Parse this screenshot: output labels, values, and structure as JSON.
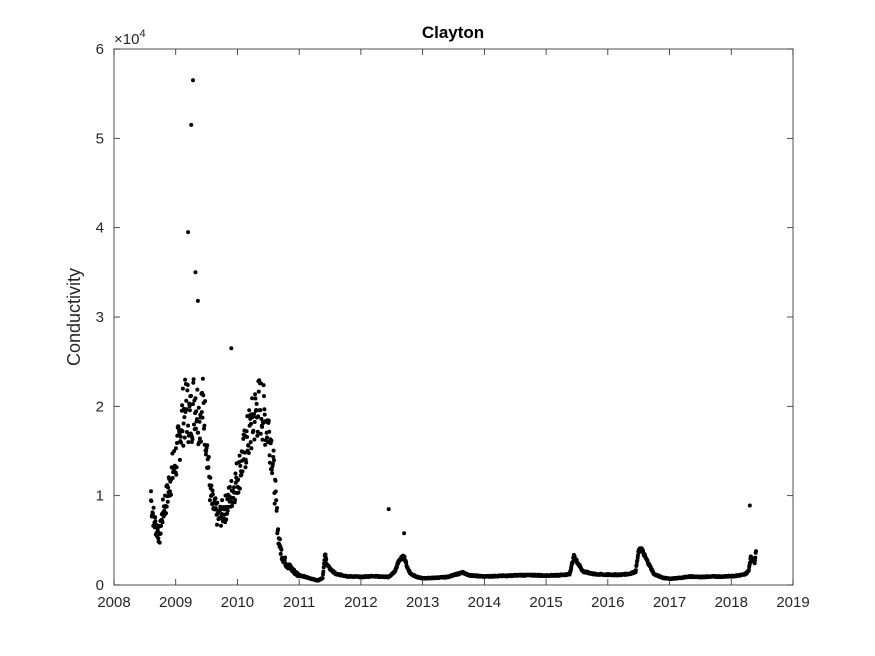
{
  "chart_data": {
    "type": "scatter",
    "title": "Clayton",
    "xlabel": "",
    "ylabel": "Conductivity",
    "xlim": [
      2008,
      2019
    ],
    "ylim": [
      0,
      60000
    ],
    "y_exponent_label": {
      "base": "×10",
      "power": "4"
    },
    "xticks": [
      "2008",
      "2009",
      "2010",
      "2011",
      "2012",
      "2013",
      "2014",
      "2015",
      "2016",
      "2017",
      "2018",
      "2019"
    ],
    "yticks": [
      "0",
      "1",
      "2",
      "3",
      "4",
      "5",
      "6"
    ],
    "marker_color": "#000000",
    "grid": false,
    "box": true,
    "notable_points": [
      {
        "x": 2008.6,
        "y": 10500
      },
      {
        "x": 2009.2,
        "y": 39500
      },
      {
        "x": 2009.25,
        "y": 51500
      },
      {
        "x": 2009.28,
        "y": 56500
      },
      {
        "x": 2009.32,
        "y": 35000
      },
      {
        "x": 2009.36,
        "y": 31800
      },
      {
        "x": 2009.9,
        "y": 26500
      },
      {
        "x": 2012.45,
        "y": 8500
      },
      {
        "x": 2012.7,
        "y": 5800
      },
      {
        "x": 2018.3,
        "y": 8900
      }
    ],
    "series": [
      {
        "x": [
          2008.6,
          2008.63,
          2008.66,
          2008.7,
          2008.74,
          2008.78,
          2008.82,
          2008.86,
          2008.9,
          2008.94,
          2008.98,
          2009.02,
          2009.05,
          2009.08,
          2009.11,
          2009.14,
          2009.17,
          2009.2,
          2009.23,
          2009.26,
          2009.29,
          2009.32,
          2009.35,
          2009.38,
          2009.41,
          2009.44,
          2009.47,
          2009.5,
          2009.53,
          2009.56,
          2009.59,
          2009.62,
          2009.65,
          2009.68,
          2009.71,
          2009.74,
          2009.77,
          2009.8,
          2009.83,
          2009.86,
          2009.89,
          2009.92,
          2009.95,
          2009.98,
          2010.01,
          2010.04,
          2010.07,
          2010.1,
          2010.13,
          2010.16,
          2010.19,
          2010.22,
          2010.25,
          2010.28,
          2010.31,
          2010.34,
          2010.37,
          2010.4,
          2010.43,
          2010.46,
          2010.49,
          2010.52,
          2010.55,
          2010.58,
          2010.61,
          2010.64,
          2010.67,
          2010.7,
          2010.73,
          2010.76,
          2010.8,
          2010.85,
          2010.9,
          2010.95,
          2011.0,
          2011.1,
          2011.2,
          2011.3,
          2011.38,
          2011.42,
          2011.45,
          2011.5,
          2011.6,
          2011.7,
          2011.8,
          2011.9,
          2012.0,
          2012.1,
          2012.2,
          2012.3,
          2012.45,
          2012.55,
          2012.62,
          2012.7,
          2012.75,
          2012.8,
          2012.9,
          2013.0,
          2013.2,
          2013.4,
          2013.55,
          2013.65,
          2013.75,
          2013.9,
          2014.0,
          2014.2,
          2014.4,
          2014.6,
          2014.8,
          2015.0,
          2015.2,
          2015.38,
          2015.45,
          2015.6,
          2015.8,
          2016.0,
          2016.2,
          2016.35,
          2016.45,
          2016.5,
          2016.55,
          2016.6,
          2016.75,
          2016.9,
          2017.0,
          2017.2,
          2017.3,
          2017.5,
          2017.7,
          2017.9,
          2018.0,
          2018.1,
          2018.2,
          2018.25,
          2018.28,
          2018.3,
          2018.32,
          2018.35,
          2018.38,
          2018.4
        ],
        "y": [
          9500,
          8000,
          7000,
          6200,
          5500,
          7800,
          9000,
          9800,
          11500,
          12500,
          13500,
          14500,
          16000,
          17500,
          18800,
          19200,
          20000,
          19500,
          18500,
          19200,
          20500,
          21000,
          19800,
          18800,
          19500,
          20000,
          18500,
          16500,
          13000,
          10500,
          9200,
          8500,
          8200,
          7800,
          7500,
          8000,
          8200,
          8500,
          9000,
          9500,
          10000,
          10500,
          11000,
          11800,
          12300,
          13000,
          13800,
          14500,
          15500,
          16200,
          17000,
          17500,
          18200,
          19000,
          19500,
          19800,
          20000,
          19500,
          19000,
          18500,
          18000,
          17000,
          15500,
          13500,
          10500,
          7500,
          5000,
          4000,
          3200,
          2800,
          2300,
          2000,
          1600,
          1300,
          1100,
          900,
          700,
          500,
          800,
          3500,
          2300,
          1800,
          1200,
          1100,
          950,
          950,
          900,
          950,
          1000,
          950,
          900,
          1500,
          2800,
          3200,
          2000,
          1300,
          900,
          750,
          800,
          900,
          1200,
          1400,
          1100,
          1000,
          950,
          1000,
          1050,
          1100,
          1100,
          1050,
          1100,
          1200,
          3200,
          1500,
          1200,
          1150,
          1150,
          1250,
          1500,
          3800,
          4000,
          3200,
          1200,
          800,
          700,
          800,
          950,
          900,
          950,
          950,
          1000,
          1050,
          1150,
          1350,
          1600,
          2500,
          3200,
          2800,
          2600,
          3800
        ]
      }
    ]
  }
}
